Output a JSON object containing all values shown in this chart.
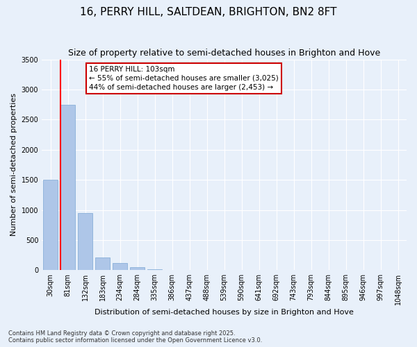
{
  "title": "16, PERRY HILL, SALTDEAN, BRIGHTON, BN2 8FT",
  "subtitle": "Size of property relative to semi-detached houses in Brighton and Hove",
  "xlabel": "Distribution of semi-detached houses by size in Brighton and Hove",
  "ylabel": "Number of semi-detached properties",
  "bin_labels": [
    "30sqm",
    "81sqm",
    "132sqm",
    "183sqm",
    "234sqm",
    "284sqm",
    "335sqm",
    "386sqm",
    "437sqm",
    "488sqm",
    "539sqm",
    "590sqm",
    "641sqm",
    "692sqm",
    "743sqm",
    "793sqm",
    "844sqm",
    "895sqm",
    "946sqm",
    "997sqm",
    "1048sqm"
  ],
  "bin_values": [
    1500,
    2750,
    950,
    210,
    120,
    55,
    15,
    0,
    0,
    0,
    0,
    0,
    0,
    0,
    0,
    0,
    0,
    0,
    0,
    0,
    0
  ],
  "bar_color": "#aec6e8",
  "bar_edge_color": "#7ba7d4",
  "annotation_title": "16 PERRY HILL: 103sqm",
  "annotation_line1": "← 55% of semi-detached houses are smaller (3,025)",
  "annotation_line2": "44% of semi-detached houses are larger (2,453) →",
  "annotation_box_color": "#cc0000",
  "ylim": [
    0,
    3500
  ],
  "yticks": [
    0,
    500,
    1000,
    1500,
    2000,
    2500,
    3000,
    3500
  ],
  "footer_line1": "Contains HM Land Registry data © Crown copyright and database right 2025.",
  "footer_line2": "Contains public sector information licensed under the Open Government Licence v3.0.",
  "bg_color": "#e8f0fa",
  "title_fontsize": 11,
  "subtitle_fontsize": 9,
  "axis_label_fontsize": 8,
  "tick_fontsize": 7,
  "annot_fontsize": 7.5
}
